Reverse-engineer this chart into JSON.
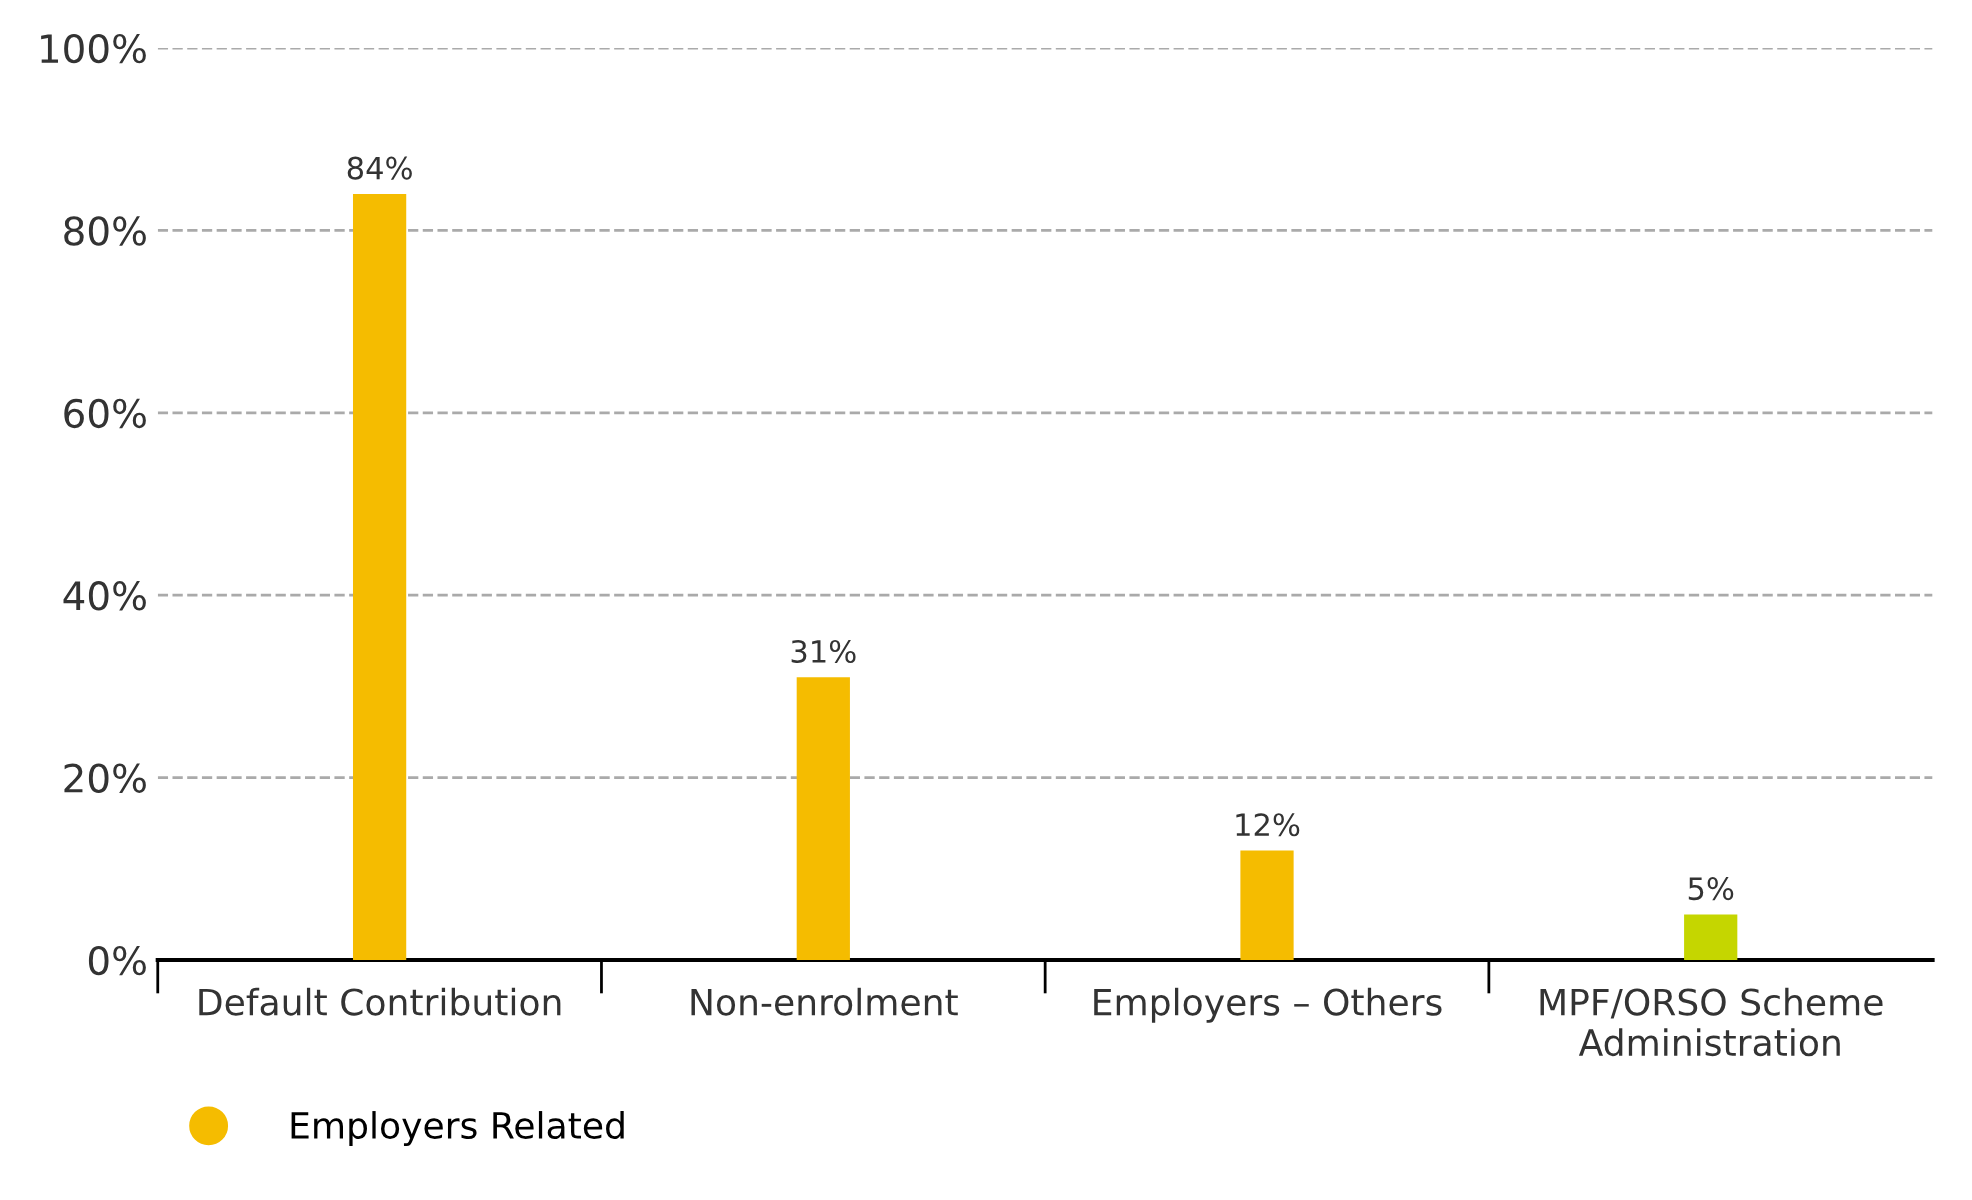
{
  "chart_data": {
    "type": "bar",
    "categories": [
      "Default Contribution",
      "Non-enrolment",
      "Employers – Others",
      "MPF/ORSO Scheme\nAdministration"
    ],
    "series": [
      {
        "name": "Employers Related",
        "color": "#f5bc00",
        "values": [
          84,
          31,
          12,
          null
        ],
        "value_labels": [
          "84%",
          "31%",
          "12%",
          null
        ]
      },
      {
        "color": "#c5d600",
        "values": [
          null,
          null,
          null,
          5
        ],
        "value_labels": [
          null,
          null,
          null,
          "5%"
        ]
      }
    ],
    "ylim": [
      0,
      100
    ],
    "yticks": [
      {
        "value": 0,
        "label": "0%"
      },
      {
        "value": 20,
        "label": "20%"
      },
      {
        "value": 40,
        "label": "40%"
      },
      {
        "value": 60,
        "label": "60%"
      },
      {
        "value": 80,
        "label": "80%"
      },
      {
        "value": 100,
        "label": "100%"
      }
    ],
    "grid": "y",
    "legend": "bottom left"
  }
}
